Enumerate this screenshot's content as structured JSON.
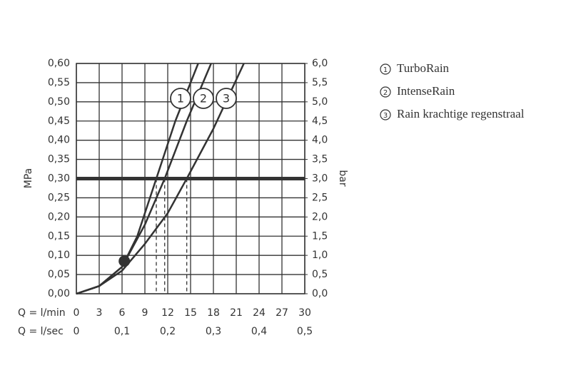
{
  "chart_data": {
    "type": "line",
    "xlabel": "Q = l/min",
    "x2label": "Q = l/sec",
    "ylabel": "MPa",
    "y2label": "bar",
    "xlim": [
      0,
      30
    ],
    "xticks": [
      0,
      3,
      6,
      9,
      12,
      15,
      18,
      21,
      24,
      27,
      30
    ],
    "x2lim": [
      0,
      0.5
    ],
    "x2ticks": [
      0,
      {
        "value": 0.1,
        "label": "0,1"
      },
      {
        "value": 0.2,
        "label": "0,2"
      },
      {
        "value": 0.3,
        "label": "0,3"
      },
      {
        "value": 0.4,
        "label": "0,4"
      },
      {
        "value": 0.5,
        "label": "0,5"
      }
    ],
    "ylim": [
      0,
      0.6
    ],
    "yticks": [
      {
        "value": 0,
        "label": "0,00"
      },
      {
        "value": 0.05,
        "label": "0,05"
      },
      {
        "value": 0.1,
        "label": "0,10"
      },
      {
        "value": 0.15,
        "label": "0,15"
      },
      {
        "value": 0.2,
        "label": "0,20"
      },
      {
        "value": 0.25,
        "label": "0,25"
      },
      {
        "value": 0.3,
        "label": "0,30"
      },
      {
        "value": 0.35,
        "label": "0,35"
      },
      {
        "value": 0.4,
        "label": "0,40"
      },
      {
        "value": 0.45,
        "label": "0,45"
      },
      {
        "value": 0.5,
        "label": "0,50"
      },
      {
        "value": 0.55,
        "label": "0,55"
      },
      {
        "value": 0.6,
        "label": "0,60"
      }
    ],
    "y2lim": [
      0,
      6
    ],
    "y2ticks": [
      {
        "value": 0,
        "label": "0,0"
      },
      {
        "value": 0.5,
        "label": "0,5"
      },
      {
        "value": 1,
        "label": "1,0"
      },
      {
        "value": 1.5,
        "label": "1,5"
      },
      {
        "value": 2,
        "label": "2,0"
      },
      {
        "value": 2.5,
        "label": "2,5"
      },
      {
        "value": 3,
        "label": "3,0"
      },
      {
        "value": 3.5,
        "label": "3,5"
      },
      {
        "value": 4,
        "label": "4,0"
      },
      {
        "value": 4.5,
        "label": "4,5"
      },
      {
        "value": 5,
        "label": "5,0"
      },
      {
        "value": 5.5,
        "label": "5,5"
      },
      {
        "value": 6,
        "label": "6,0"
      }
    ],
    "grid": true,
    "color": "#333333",
    "reference_line": 0.3,
    "intersections_x": [
      10.5,
      11.6,
      14.5
    ],
    "marker": {
      "x": 6.3,
      "y": 0.085
    },
    "series": [
      {
        "name": "TurboRain",
        "label": "1",
        "x": [
          0,
          3,
          6,
          8,
          10.5,
          13,
          16
        ],
        "values": [
          0,
          0.02,
          0.07,
          0.15,
          0.3,
          0.45,
          0.6
        ]
      },
      {
        "name": "IntenseRain",
        "label": "2",
        "x": [
          0,
          3,
          6,
          9,
          11.6,
          14.5,
          17.7
        ],
        "values": [
          0,
          0.02,
          0.07,
          0.18,
          0.3,
          0.45,
          0.6
        ]
      },
      {
        "name": "Rain krachtige regenstraal",
        "label": "3",
        "x": [
          0,
          3,
          6,
          9,
          12,
          14.5,
          18,
          22
        ],
        "values": [
          0,
          0.02,
          0.06,
          0.13,
          0.21,
          0.3,
          0.43,
          0.6
        ]
      }
    ]
  }
}
